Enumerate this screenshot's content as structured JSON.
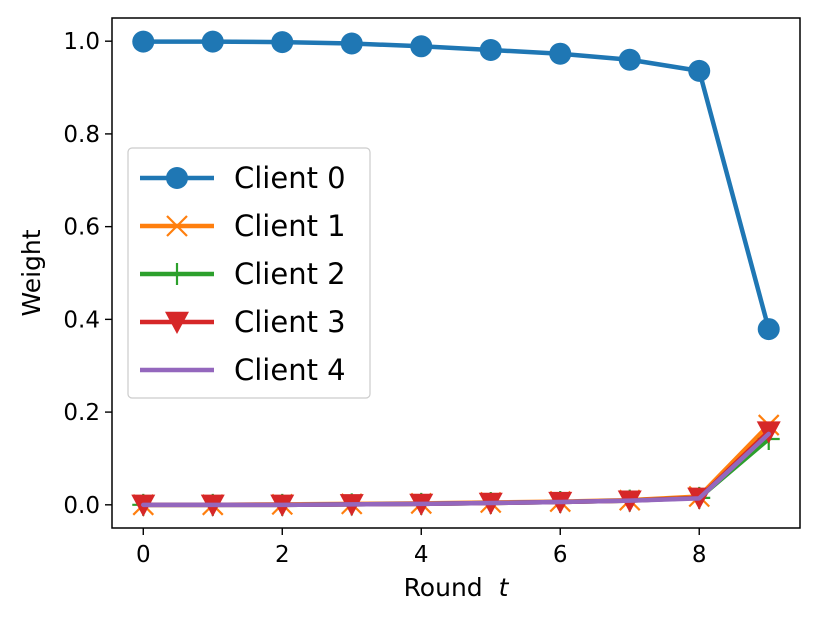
{
  "chart_data": {
    "type": "line",
    "xlabel_text": "Round",
    "xlabel_var": "t",
    "ylabel": "Weight",
    "xlim": [
      -0.45,
      9.45
    ],
    "ylim": [
      -0.05,
      1.05
    ],
    "xticks": [
      0,
      2,
      4,
      6,
      8
    ],
    "xtick_labels": [
      "0",
      "2",
      "4",
      "6",
      "8"
    ],
    "yticks": [
      0.0,
      0.2,
      0.4,
      0.6,
      0.8,
      1.0
    ],
    "ytick_labels": [
      "0.0",
      "0.2",
      "0.4",
      "0.6",
      "0.8",
      "1.0"
    ],
    "grid": false,
    "legend_position": "center-left",
    "x": [
      0,
      1,
      2,
      3,
      4,
      5,
      6,
      7,
      8,
      9
    ],
    "series": [
      {
        "name": "Client 0",
        "color": "#1f77b4",
        "marker": "circle",
        "values": [
          0.999,
          0.999,
          0.998,
          0.995,
          0.989,
          0.981,
          0.973,
          0.96,
          0.936,
          0.379
        ]
      },
      {
        "name": "Client 1",
        "color": "#ff7f0e",
        "marker": "x",
        "values": [
          0.0,
          0.0,
          0.001,
          0.002,
          0.003,
          0.005,
          0.007,
          0.01,
          0.018,
          0.172
        ]
      },
      {
        "name": "Client 2",
        "color": "#2ca02c",
        "marker": "plus",
        "values": [
          0.0,
          0.0,
          0.0,
          0.001,
          0.002,
          0.004,
          0.006,
          0.009,
          0.015,
          0.142
        ]
      },
      {
        "name": "Client 3",
        "color": "#d62728",
        "marker": "triangle-down",
        "values": [
          0.0,
          0.0,
          0.0,
          0.001,
          0.002,
          0.004,
          0.006,
          0.009,
          0.015,
          0.158
        ]
      },
      {
        "name": "Client 4",
        "color": "#9467bd",
        "marker": "none",
        "values": [
          0.0,
          0.0,
          0.0,
          0.001,
          0.002,
          0.004,
          0.006,
          0.009,
          0.014,
          0.153
        ]
      }
    ]
  }
}
